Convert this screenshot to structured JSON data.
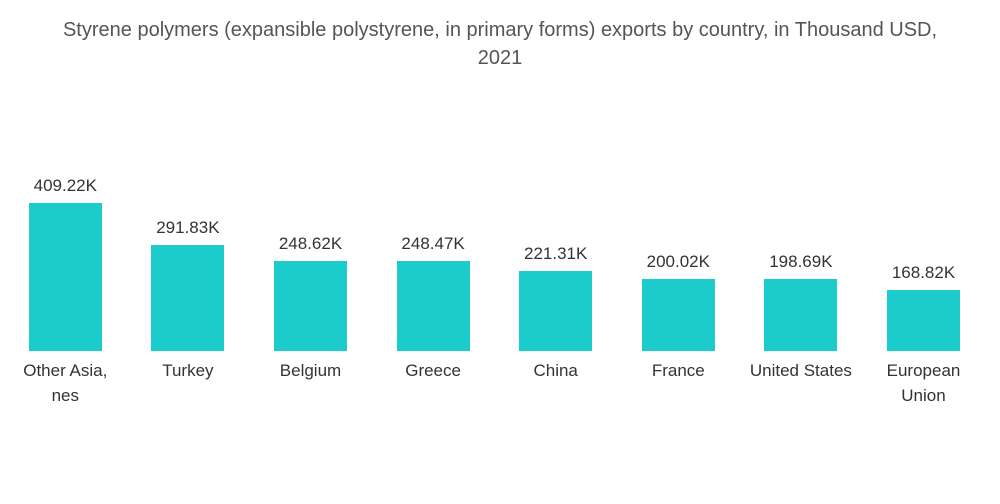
{
  "chart_data": {
    "type": "bar",
    "title": "Styrene polymers (expansible polystyrene, in primary forms) exports by country, in Thousand USD, 2021",
    "categories": [
      "Other Asia, nes",
      "Turkey",
      "Belgium",
      "Greece",
      "China",
      "France",
      "United States",
      "European Union"
    ],
    "values": [
      409220,
      291830,
      248620,
      248470,
      221310,
      200020,
      198690,
      168820
    ],
    "value_labels": [
      "409.22K",
      "291.83K",
      "248.62K",
      "248.47K",
      "221.31K",
      "200.02K",
      "198.69K",
      "168.82K"
    ],
    "color": "#1ccbcc"
  }
}
